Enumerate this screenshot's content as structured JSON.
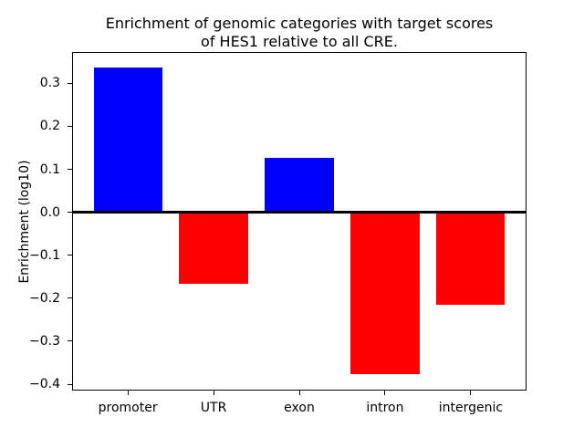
{
  "figure": {
    "title_line1": "Enrichment of genomic categories with target scores",
    "title_line2": "of HES1 relative to all CRE."
  },
  "chart_data": {
    "type": "bar",
    "title": "Enrichment of genomic categories with target scores\nof HES1 relative to all CRE.",
    "xlabel": "",
    "ylabel": "Enrichment (log10)",
    "categories": [
      "promoter",
      "UTR",
      "exon",
      "intron",
      "intergenic"
    ],
    "values": [
      0.336,
      -0.166,
      0.126,
      -0.376,
      -0.216
    ],
    "bar_colors": [
      "#0000ff",
      "#ff0000",
      "#0000ff",
      "#ff0000",
      "#ff0000"
    ],
    "positive_color": "#0000ff",
    "negative_color": "#ff0000",
    "yticks": [
      0.3,
      0.2,
      0.1,
      0.0,
      -0.1,
      -0.2,
      -0.3,
      -0.4
    ],
    "ylim": [
      -0.4125,
      0.3706
    ],
    "xlim": [
      -0.64,
      4.64
    ],
    "bar_width": 0.8,
    "zero_line": true,
    "zero_line_color": "#000000",
    "grid": false,
    "legend_visible": false,
    "axis_color": "#000000",
    "background": "#ffffff"
  }
}
